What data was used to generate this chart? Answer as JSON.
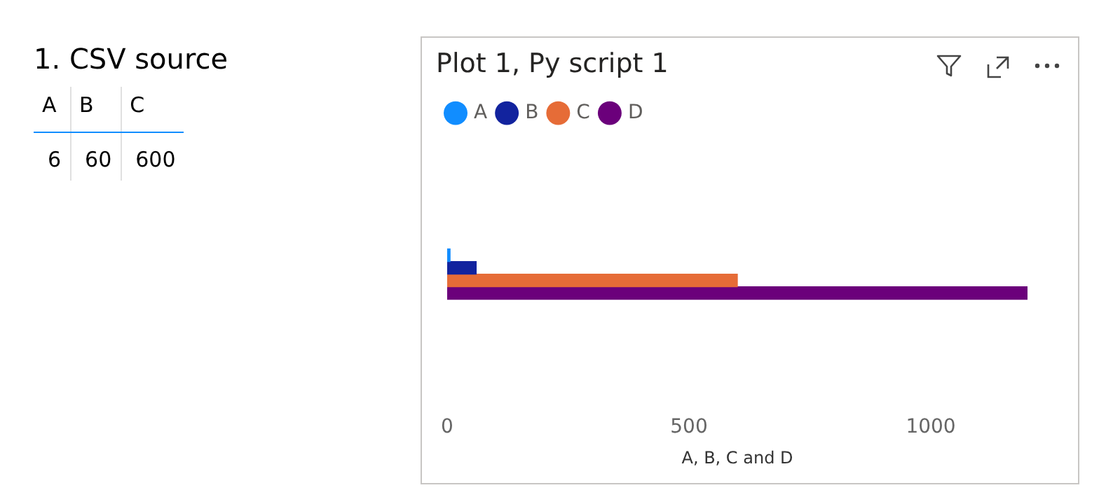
{
  "chart_data": [
    {
      "type": "other",
      "title": "1. CSV source",
      "categories": [
        "A",
        "B",
        "C"
      ],
      "values": [
        6,
        60,
        600
      ],
      "data_labels": true
    },
    {
      "type": "bar",
      "orientation": "horizontal",
      "title": "Plot 1, Py script 1",
      "xlabel": "A, B, C and D",
      "categories": [
        null
      ],
      "series": [
        {
          "name": "A",
          "color": "#118dff",
          "values": [
            6
          ]
        },
        {
          "name": "B",
          "color": "#12239e",
          "values": [
            60
          ]
        },
        {
          "name": "C",
          "color": "#e66c37",
          "values": [
            600
          ]
        },
        {
          "name": "D",
          "color": "#6b007b",
          "values": [
            1200
          ]
        }
      ],
      "xlim": [
        0,
        1200
      ],
      "xticks": [
        0,
        500,
        1000
      ],
      "tick_labels": "x",
      "legend": "top left",
      "grid": false
    }
  ]
}
